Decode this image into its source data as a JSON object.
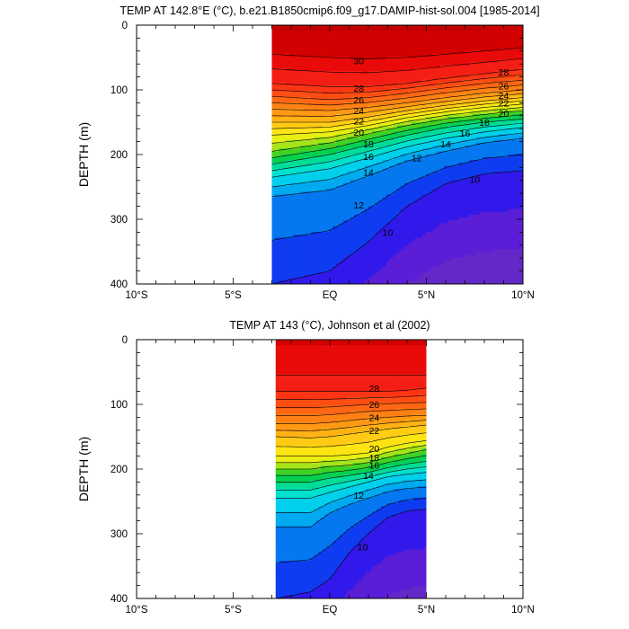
{
  "chart_data": [
    {
      "type": "contour",
      "title": "TEMP AT 142.8°E (°C), b.e21.B1850cmip6.f09_g17.DAMIP-hist-sol.004 [1985-2014]",
      "ylabel": "DEPTH (m)",
      "xlim": [
        -10,
        10
      ],
      "ylim": [
        400,
        0
      ],
      "x_ticks": [
        {
          "value": -10,
          "label": "10°S"
        },
        {
          "value": -5,
          "label": "5°S"
        },
        {
          "value": 0,
          "label": "EQ"
        },
        {
          "value": 5,
          "label": "5°N"
        },
        {
          "value": 10,
          "label": "10°N"
        }
      ],
      "y_ticks": [
        0,
        100,
        200,
        300,
        400
      ],
      "data_lon_range": [
        -3,
        10
      ],
      "contour_interval": 1,
      "isotherms": [
        {
          "level": 30,
          "x": [
            -3,
            0,
            2,
            4,
            6,
            8,
            10
          ],
          "depth": [
            45,
            50,
            52,
            50,
            45,
            40,
            35
          ]
        },
        {
          "level": 28,
          "x": [
            -3,
            0,
            2,
            4,
            6,
            8,
            10
          ],
          "depth": [
            90,
            95,
            95,
            90,
            82,
            75,
            68
          ]
        },
        {
          "level": 26,
          "x": [
            -3,
            0,
            2,
            4,
            6,
            8,
            10
          ],
          "depth": [
            110,
            115,
            112,
            105,
            97,
            90,
            85
          ]
        },
        {
          "level": 24,
          "x": [
            -3,
            0,
            2,
            4,
            6,
            8,
            10
          ],
          "depth": [
            130,
            132,
            127,
            120,
            112,
            105,
            100
          ]
        },
        {
          "level": 22,
          "x": [
            -3,
            0,
            2,
            4,
            6,
            8,
            10
          ],
          "depth": [
            150,
            150,
            142,
            132,
            124,
            117,
            112
          ]
        },
        {
          "level": 20,
          "x": [
            -3,
            0,
            2,
            4,
            6,
            8,
            10
          ],
          "depth": [
            170,
            165,
            155,
            143,
            134,
            127,
            122
          ]
        },
        {
          "level": 18,
          "x": [
            -3,
            0,
            2,
            4,
            6,
            8,
            10
          ],
          "depth": [
            195,
            182,
            168,
            155,
            145,
            138,
            132
          ]
        },
        {
          "level": 16,
          "x": [
            -3,
            0,
            2,
            4,
            6,
            8,
            10
          ],
          "depth": [
            215,
            200,
            185,
            170,
            158,
            150,
            145
          ]
        },
        {
          "level": 14,
          "x": [
            -3,
            0,
            2,
            4,
            6,
            8,
            10
          ],
          "depth": [
            235,
            222,
            205,
            188,
            175,
            165,
            158
          ]
        },
        {
          "level": 12,
          "x": [
            -3,
            0,
            2,
            4,
            6,
            8,
            10
          ],
          "depth": [
            265,
            255,
            233,
            210,
            195,
            182,
            175
          ]
        },
        {
          "level": 10,
          "x": [
            -3,
            0,
            2,
            4,
            6,
            8,
            10
          ],
          "depth": [
            400,
            380,
            335,
            280,
            245,
            230,
            225
          ]
        }
      ],
      "labels": [
        {
          "text": "30",
          "x": 1.5,
          "depth": 55
        },
        {
          "text": "28",
          "x": 1.5,
          "depth": 97
        },
        {
          "text": "26",
          "x": 1.5,
          "depth": 115
        },
        {
          "text": "24",
          "x": 1.5,
          "depth": 132
        },
        {
          "text": "22",
          "x": 1.5,
          "depth": 148
        },
        {
          "text": "20",
          "x": 1.5,
          "depth": 165
        },
        {
          "text": "18",
          "x": 2,
          "depth": 183
        },
        {
          "text": "16",
          "x": 2,
          "depth": 203
        },
        {
          "text": "14",
          "x": 2,
          "depth": 227
        },
        {
          "text": "12",
          "x": 1.5,
          "depth": 278
        },
        {
          "text": "10",
          "x": 3,
          "depth": 320
        },
        {
          "text": "28",
          "x": 9,
          "depth": 72
        },
        {
          "text": "26",
          "x": 9,
          "depth": 94
        },
        {
          "text": "24",
          "x": 9,
          "depth": 108
        },
        {
          "text": "22",
          "x": 9,
          "depth": 120
        },
        {
          "text": "20",
          "x": 9,
          "depth": 136
        },
        {
          "text": "18",
          "x": 8,
          "depth": 150
        },
        {
          "text": "16",
          "x": 7,
          "depth": 167
        },
        {
          "text": "14",
          "x": 6,
          "depth": 183
        },
        {
          "text": "12",
          "x": 4.5,
          "depth": 205
        },
        {
          "text": "10",
          "x": 7.5,
          "depth": 238
        }
      ]
    },
    {
      "type": "contour",
      "title": "TEMP AT 143 (°C), Johnson et al (2002)",
      "ylabel": "DEPTH (m)",
      "xlim": [
        -10,
        10
      ],
      "ylim": [
        400,
        0
      ],
      "x_ticks": [
        {
          "value": -10,
          "label": "10°S"
        },
        {
          "value": -5,
          "label": "5°S"
        },
        {
          "value": 0,
          "label": "EQ"
        },
        {
          "value": 5,
          "label": "5°N"
        },
        {
          "value": 10,
          "label": "10°N"
        }
      ],
      "y_ticks": [
        0,
        100,
        200,
        300,
        400
      ],
      "data_lon_range": [
        -2.8,
        5
      ],
      "contour_interval": 1,
      "isotherms": [
        {
          "level": 29,
          "x": [
            -2.8,
            -1,
            0,
            1,
            2,
            3,
            4,
            5
          ],
          "depth": [
            55,
            55,
            55,
            55,
            55,
            55,
            55,
            55
          ]
        },
        {
          "level": 28,
          "x": [
            -2.8,
            -1,
            0,
            1,
            2,
            3,
            4,
            5
          ],
          "depth": [
            80,
            80,
            80,
            80,
            80,
            80,
            78,
            75
          ]
        },
        {
          "level": 26,
          "x": [
            -2.8,
            -1,
            0,
            1,
            2,
            3,
            4,
            5
          ],
          "depth": [
            105,
            105,
            104,
            102,
            100,
            99,
            98,
            97
          ]
        },
        {
          "level": 24,
          "x": [
            -2.8,
            -1,
            0,
            1,
            2,
            3,
            4,
            5
          ],
          "depth": [
            130,
            130,
            128,
            125,
            122,
            120,
            118,
            117
          ]
        },
        {
          "level": 22,
          "x": [
            -2.8,
            -1,
            0,
            1,
            2,
            3,
            4,
            5
          ],
          "depth": [
            150,
            152,
            150,
            146,
            142,
            138,
            135,
            132
          ]
        },
        {
          "level": 20,
          "x": [
            -2.8,
            -1,
            0,
            1,
            2,
            3,
            4,
            5
          ],
          "depth": [
            180,
            180,
            180,
            178,
            175,
            166,
            160,
            156
          ]
        },
        {
          "level": 18,
          "x": [
            -2.8,
            -1,
            0,
            1,
            2,
            3,
            4,
            5
          ],
          "depth": [
            200,
            200,
            196,
            194,
            190,
            182,
            176,
            170
          ]
        },
        {
          "level": 16,
          "x": [
            -2.8,
            -1,
            0,
            1,
            2,
            3,
            4,
            5
          ],
          "depth": [
            220,
            220,
            214,
            210,
            205,
            198,
            192,
            188
          ]
        },
        {
          "level": 14,
          "x": [
            -2.8,
            -1,
            0,
            1,
            2,
            3,
            4,
            5
          ],
          "depth": [
            245,
            245,
            236,
            228,
            220,
            212,
            208,
            205
          ]
        },
        {
          "level": 12,
          "x": [
            -2.8,
            -1,
            0,
            1,
            2,
            3,
            4,
            5
          ],
          "depth": [
            290,
            290,
            268,
            255,
            245,
            235,
            230,
            228
          ]
        },
        {
          "level": 10,
          "x": [
            -2.8,
            -1,
            0,
            1,
            2,
            3,
            4,
            5
          ],
          "depth": [
            400,
            390,
            370,
            330,
            300,
            275,
            265,
            262
          ]
        }
      ],
      "labels": [
        {
          "text": "28",
          "x": 2.3,
          "depth": 75
        },
        {
          "text": "26",
          "x": 2.3,
          "depth": 100
        },
        {
          "text": "24",
          "x": 2.3,
          "depth": 120
        },
        {
          "text": "22",
          "x": 2.3,
          "depth": 140
        },
        {
          "text": "20",
          "x": 2.3,
          "depth": 168
        },
        {
          "text": "18",
          "x": 2.3,
          "depth": 182
        },
        {
          "text": "16",
          "x": 2.3,
          "depth": 194
        },
        {
          "text": "14",
          "x": 2,
          "depth": 210
        },
        {
          "text": "12",
          "x": 1.5,
          "depth": 240
        },
        {
          "text": "10",
          "x": 1.7,
          "depth": 320
        }
      ]
    }
  ]
}
